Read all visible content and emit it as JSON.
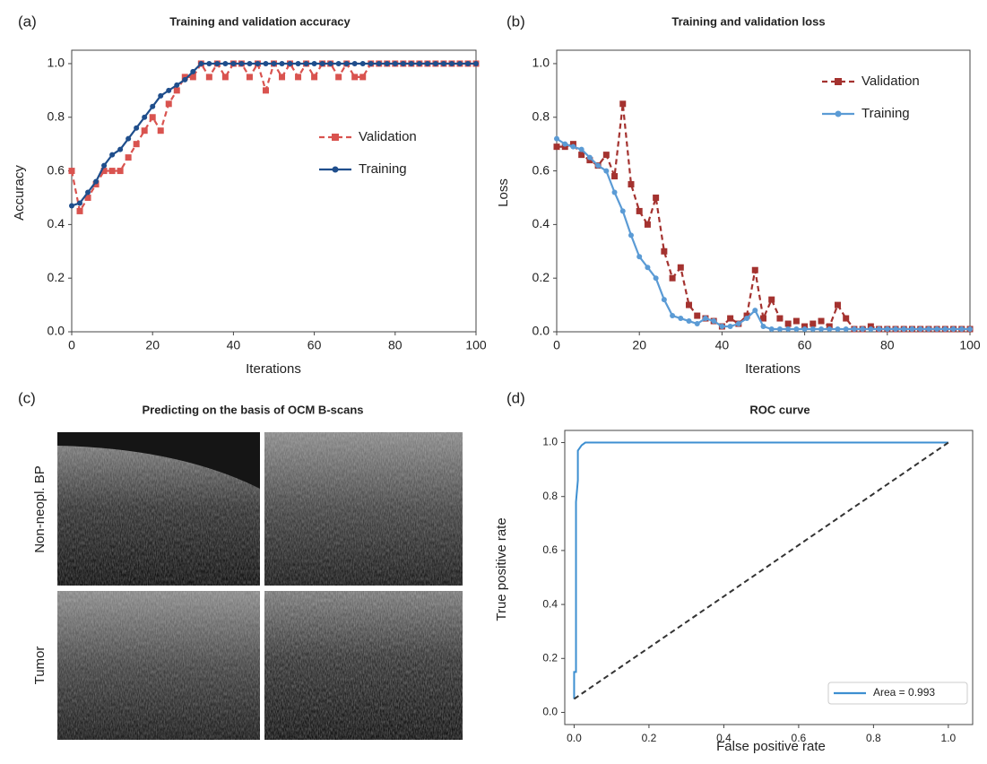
{
  "chart_data": [
    {
      "type": "line",
      "label": "(a)",
      "title": "Training and validation accuracy",
      "xlabel": "Iterations",
      "ylabel": "Accuracy",
      "x": [
        0,
        2,
        4,
        6,
        8,
        10,
        12,
        14,
        16,
        18,
        20,
        22,
        24,
        26,
        28,
        30,
        32,
        34,
        36,
        38,
        40,
        42,
        44,
        46,
        48,
        50,
        52,
        54,
        56,
        58,
        60,
        62,
        64,
        66,
        68,
        70,
        72,
        74,
        76,
        78,
        80,
        82,
        84,
        86,
        88,
        90,
        92,
        94,
        96,
        98,
        100
      ],
      "series": [
        {
          "name": "Validation",
          "color": "#d9534f",
          "dashed": true,
          "marker": "square",
          "values": [
            0.6,
            0.45,
            0.5,
            0.55,
            0.6,
            0.6,
            0.6,
            0.65,
            0.7,
            0.75,
            0.8,
            0.75,
            0.85,
            0.9,
            0.95,
            0.95,
            1.0,
            0.95,
            1.0,
            0.95,
            1.0,
            1.0,
            0.95,
            1.0,
            0.9,
            1.0,
            0.95,
            1.0,
            0.95,
            1.0,
            0.95,
            1.0,
            1.0,
            0.95,
            1.0,
            0.95,
            0.95,
            1.0,
            1.0,
            1.0,
            1.0,
            1.0,
            1.0,
            1.0,
            1.0,
            1.0,
            1.0,
            1.0,
            1.0,
            1.0,
            1.0
          ]
        },
        {
          "name": "Training",
          "color": "#1f4e8c",
          "dashed": false,
          "marker": "circle",
          "values": [
            0.47,
            0.48,
            0.52,
            0.56,
            0.62,
            0.66,
            0.68,
            0.72,
            0.76,
            0.8,
            0.84,
            0.88,
            0.9,
            0.92,
            0.94,
            0.97,
            1.0,
            1.0,
            1.0,
            1.0,
            1.0,
            1.0,
            1.0,
            1.0,
            1.0,
            1.0,
            1.0,
            1.0,
            1.0,
            1.0,
            1.0,
            1.0,
            1.0,
            1.0,
            1.0,
            1.0,
            1.0,
            1.0,
            1.0,
            1.0,
            1.0,
            1.0,
            1.0,
            1.0,
            1.0,
            1.0,
            1.0,
            1.0,
            1.0,
            1.0,
            1.0
          ]
        }
      ],
      "xlim": [
        0,
        100
      ],
      "xticks": [
        0,
        20,
        40,
        60,
        80,
        100
      ],
      "ylim": [
        0,
        1.05
      ],
      "yticks": [
        {
          "value": 0,
          "label": "0.0"
        },
        0.2,
        0.4,
        0.6,
        0.8,
        {
          "value": 1,
          "label": "1.0"
        }
      ],
      "legend": "center right"
    },
    {
      "type": "line",
      "label": "(b)",
      "title": "Training and validation loss",
      "xlabel": "Iterations",
      "ylabel": "Loss",
      "x": [
        0,
        2,
        4,
        6,
        8,
        10,
        12,
        14,
        16,
        18,
        20,
        22,
        24,
        26,
        28,
        30,
        32,
        34,
        36,
        38,
        40,
        42,
        44,
        46,
        48,
        50,
        52,
        54,
        56,
        58,
        60,
        62,
        64,
        66,
        68,
        70,
        72,
        74,
        76,
        78,
        80,
        82,
        84,
        86,
        88,
        90,
        92,
        94,
        96,
        98,
        100
      ],
      "series": [
        {
          "name": "Validation",
          "color": "#a4322f",
          "dashed": true,
          "marker": "square",
          "values": [
            0.69,
            0.69,
            0.7,
            0.66,
            0.64,
            0.62,
            0.66,
            0.58,
            0.85,
            0.55,
            0.45,
            0.4,
            0.5,
            0.3,
            0.2,
            0.24,
            0.1,
            0.06,
            0.05,
            0.04,
            0.02,
            0.05,
            0.03,
            0.06,
            0.23,
            0.05,
            0.12,
            0.05,
            0.03,
            0.04,
            0.02,
            0.03,
            0.04,
            0.02,
            0.1,
            0.05,
            0.01,
            0.01,
            0.02,
            0.01,
            0.01,
            0.01,
            0.01,
            0.01,
            0.01,
            0.01,
            0.01,
            0.01,
            0.01,
            0.01,
            0.01
          ]
        },
        {
          "name": "Training",
          "color": "#5b9bd5",
          "dashed": false,
          "marker": "circle",
          "values": [
            0.72,
            0.7,
            0.69,
            0.68,
            0.65,
            0.62,
            0.6,
            0.52,
            0.45,
            0.36,
            0.28,
            0.24,
            0.2,
            0.12,
            0.06,
            0.05,
            0.04,
            0.03,
            0.05,
            0.04,
            0.02,
            0.02,
            0.03,
            0.05,
            0.08,
            0.02,
            0.01,
            0.01,
            0.01,
            0.01,
            0.01,
            0.01,
            0.01,
            0.01,
            0.01,
            0.01,
            0.01,
            0.01,
            0.01,
            0.01,
            0.01,
            0.01,
            0.01,
            0.01,
            0.01,
            0.01,
            0.01,
            0.01,
            0.01,
            0.01,
            0.01
          ]
        }
      ],
      "xlim": [
        0,
        100
      ],
      "xticks": [
        0,
        20,
        40,
        60,
        80,
        100
      ],
      "ylim": [
        0,
        1.05
      ],
      "yticks": [
        {
          "value": 0,
          "label": "0.0"
        },
        0.2,
        0.4,
        0.6,
        0.8,
        {
          "value": 1,
          "label": "1.0"
        }
      ],
      "legend": "upper right"
    },
    {
      "type": "line",
      "label": "(d)",
      "title": "ROC curve",
      "xlabel": "False positive rate",
      "ylabel": "True positive rate",
      "series": [
        {
          "name": "Area = 0.993",
          "color": "#3d8fd1",
          "dashed": false,
          "marker": "none",
          "x": [
            0,
            0,
            0.005,
            0.005,
            0.01,
            0.01,
            0.02,
            0.03,
            0.12,
            1.0
          ],
          "values": [
            0.05,
            0.15,
            0.15,
            0.78,
            0.86,
            0.97,
            0.99,
            1.0,
            1.0,
            1.0
          ]
        },
        {
          "color": "#333333",
          "dashed": true,
          "marker": "none",
          "x": [
            0,
            1.0
          ],
          "values": [
            0.05,
            1.0
          ]
        }
      ],
      "xlim": [
        -0.025,
        1.065
      ],
      "xticks": [
        {
          "value": 0,
          "label": "0.0"
        },
        0.2,
        0.4,
        0.6,
        0.8,
        {
          "value": 1,
          "label": "1.0"
        }
      ],
      "ylim": [
        -0.045,
        1.045
      ],
      "yticks": [
        {
          "value": 0,
          "label": "0.0"
        },
        0.2,
        0.4,
        0.6,
        0.8,
        {
          "value": 1,
          "label": "1.0"
        }
      ],
      "legend": "lower right"
    }
  ],
  "image_panel": {
    "label": "(c)",
    "title": "Predicting on the basis of OCM B-scans",
    "row_labels": [
      "Non-neopl. BP",
      "Tumor"
    ]
  }
}
